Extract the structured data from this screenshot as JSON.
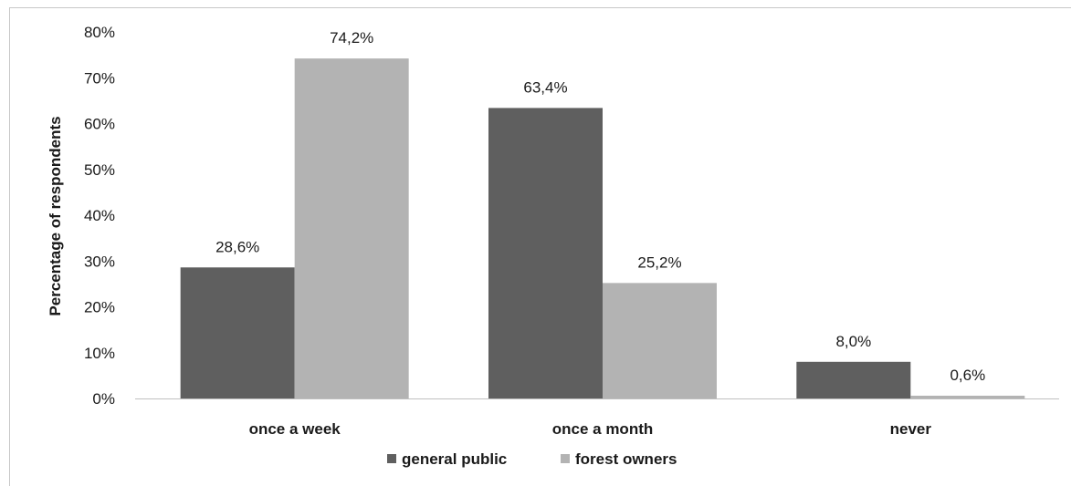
{
  "chart_data": {
    "type": "bar",
    "categories": [
      "once a week",
      "once a month",
      "never"
    ],
    "series": [
      {
        "name": "general public",
        "values": [
          28.6,
          63.4,
          8.0
        ],
        "labels": [
          "28,6%",
          "63,4%",
          "8,0%"
        ],
        "color": "#5f5f5f"
      },
      {
        "name": "forest owners",
        "values": [
          74.2,
          25.2,
          0.6
        ],
        "labels": [
          "74,2%",
          "25,2%",
          "0,6%"
        ],
        "color": "#b3b3b3"
      }
    ],
    "title": "",
    "xlabel": "",
    "ylabel": "Percentage of respondents",
    "ylim": [
      0,
      80
    ],
    "yticks": [
      0,
      10,
      20,
      30,
      40,
      50,
      60,
      70,
      80
    ],
    "ytick_labels": [
      "0%",
      "10%",
      "20%",
      "30%",
      "40%",
      "50%",
      "60%",
      "70%",
      "80%"
    ],
    "grid": false,
    "legend_position": "bottom"
  }
}
